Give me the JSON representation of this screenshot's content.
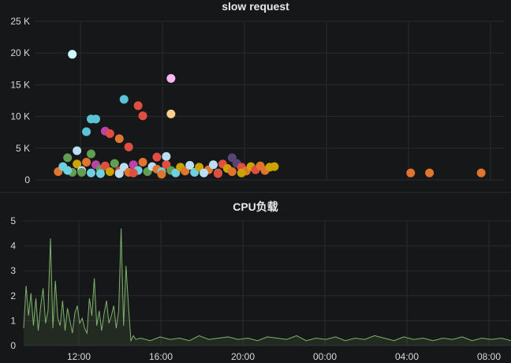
{
  "panels": [
    {
      "title": "slow request"
    },
    {
      "title": "CPU负载"
    }
  ],
  "chart_data": [
    {
      "type": "scatter",
      "title": "slow request",
      "y_ticks": [
        "0",
        "5 K",
        "10 K",
        "15 K",
        "20 K",
        "25 K"
      ],
      "ylim": [
        0,
        25000
      ],
      "grid": true,
      "points": [
        {
          "x": 0.08,
          "y": 19800,
          "color": "#cffaff"
        },
        {
          "x": 0.29,
          "y": 16000,
          "color": "#ffb7f4"
        },
        {
          "x": 0.19,
          "y": 12700,
          "color": "#5bc3d6"
        },
        {
          "x": 0.22,
          "y": 11700,
          "color": "#e24d42"
        },
        {
          "x": 0.23,
          "y": 10100,
          "color": "#e24d42"
        },
        {
          "x": 0.29,
          "y": 10400,
          "color": "#f9ce8f"
        },
        {
          "x": 0.12,
          "y": 9600,
          "color": "#5bc3d6"
        },
        {
          "x": 0.13,
          "y": 9600,
          "color": "#5bc3d6"
        },
        {
          "x": 0.11,
          "y": 7600,
          "color": "#5bc3d6"
        },
        {
          "x": 0.15,
          "y": 7700,
          "color": "#ba43a9"
        },
        {
          "x": 0.16,
          "y": 7300,
          "color": "#e24d42"
        },
        {
          "x": 0.18,
          "y": 6500,
          "color": "#e0752d"
        },
        {
          "x": 0.2,
          "y": 5200,
          "color": "#e24d42"
        },
        {
          "x": 0.09,
          "y": 4600,
          "color": "#badff4"
        },
        {
          "x": 0.07,
          "y": 3500,
          "color": "#629e51"
        },
        {
          "x": 0.12,
          "y": 4100,
          "color": "#629e51"
        },
        {
          "x": 0.26,
          "y": 3600,
          "color": "#e24d42"
        },
        {
          "x": 0.28,
          "y": 3700,
          "color": "#badff4"
        },
        {
          "x": 0.42,
          "y": 3500,
          "color": "#584477"
        },
        {
          "x": 0.05,
          "y": 1300,
          "color": "#e0752d"
        },
        {
          "x": 0.06,
          "y": 2100,
          "color": "#6ed0e0"
        },
        {
          "x": 0.08,
          "y": 1200,
          "color": "#629e51"
        },
        {
          "x": 0.09,
          "y": 2500,
          "color": "#cca300"
        },
        {
          "x": 0.1,
          "y": 1500,
          "color": "#badff4"
        },
        {
          "x": 0.11,
          "y": 2800,
          "color": "#e0752d"
        },
        {
          "x": 0.12,
          "y": 1100,
          "color": "#6ed0e0"
        },
        {
          "x": 0.13,
          "y": 2400,
          "color": "#ba43a9"
        },
        {
          "x": 0.14,
          "y": 1700,
          "color": "#629e51"
        },
        {
          "x": 0.15,
          "y": 2200,
          "color": "#e24d42"
        },
        {
          "x": 0.16,
          "y": 1300,
          "color": "#cca300"
        },
        {
          "x": 0.17,
          "y": 2600,
          "color": "#629e51"
        },
        {
          "x": 0.18,
          "y": 1400,
          "color": "#e24d42"
        },
        {
          "x": 0.19,
          "y": 2000,
          "color": "#badff4"
        },
        {
          "x": 0.2,
          "y": 1200,
          "color": "#e0752d"
        },
        {
          "x": 0.21,
          "y": 2400,
          "color": "#ba43a9"
        },
        {
          "x": 0.22,
          "y": 1500,
          "color": "#6ed0e0"
        },
        {
          "x": 0.23,
          "y": 2800,
          "color": "#e0752d"
        },
        {
          "x": 0.24,
          "y": 1300,
          "color": "#629e51"
        },
        {
          "x": 0.25,
          "y": 2100,
          "color": "#badff4"
        },
        {
          "x": 0.26,
          "y": 1700,
          "color": "#e0752d"
        },
        {
          "x": 0.27,
          "y": 1300,
          "color": "#6ed0e0"
        },
        {
          "x": 0.28,
          "y": 2400,
          "color": "#e24d42"
        },
        {
          "x": 0.29,
          "y": 1500,
          "color": "#629e51"
        },
        {
          "x": 0.3,
          "y": 1100,
          "color": "#6ed0e0"
        },
        {
          "x": 0.31,
          "y": 2000,
          "color": "#cca300"
        },
        {
          "x": 0.32,
          "y": 1400,
          "color": "#e0752d"
        },
        {
          "x": 0.33,
          "y": 2300,
          "color": "#badff4"
        },
        {
          "x": 0.34,
          "y": 1200,
          "color": "#6ed0e0"
        },
        {
          "x": 0.35,
          "y": 2000,
          "color": "#cca300"
        },
        {
          "x": 0.37,
          "y": 1600,
          "color": "#e0752d"
        },
        {
          "x": 0.38,
          "y": 2400,
          "color": "#badff4"
        },
        {
          "x": 0.39,
          "y": 1100,
          "color": "#629e51"
        },
        {
          "x": 0.4,
          "y": 2500,
          "color": "#e24d42"
        },
        {
          "x": 0.41,
          "y": 1800,
          "color": "#cca300"
        },
        {
          "x": 0.42,
          "y": 1300,
          "color": "#e0752d"
        },
        {
          "x": 0.43,
          "y": 2600,
          "color": "#584477"
        },
        {
          "x": 0.44,
          "y": 2000,
          "color": "#e24d42"
        },
        {
          "x": 0.45,
          "y": 1400,
          "color": "#e0752d"
        },
        {
          "x": 0.46,
          "y": 2100,
          "color": "#cca300"
        },
        {
          "x": 0.47,
          "y": 1600,
          "color": "#e24d42"
        },
        {
          "x": 0.48,
          "y": 2200,
          "color": "#e0752d"
        },
        {
          "x": 0.49,
          "y": 1500,
          "color": "#e0752d"
        },
        {
          "x": 0.5,
          "y": 2000,
          "color": "#cca300"
        },
        {
          "x": 0.51,
          "y": 2100,
          "color": "#cca300"
        },
        {
          "x": 0.07,
          "y": 1500,
          "color": "#6ed0e0"
        },
        {
          "x": 0.1,
          "y": 1200,
          "color": "#629e51"
        },
        {
          "x": 0.14,
          "y": 1000,
          "color": "#6ed0e0"
        },
        {
          "x": 0.18,
          "y": 1000,
          "color": "#badff4"
        },
        {
          "x": 0.21,
          "y": 1100,
          "color": "#e24d42"
        },
        {
          "x": 0.27,
          "y": 900,
          "color": "#e0752d"
        },
        {
          "x": 0.36,
          "y": 1100,
          "color": "#badff4"
        },
        {
          "x": 0.39,
          "y": 1000,
          "color": "#e24d42"
        },
        {
          "x": 0.44,
          "y": 1100,
          "color": "#cca300"
        },
        {
          "x": 0.8,
          "y": 1100,
          "color": "#e0752d"
        },
        {
          "x": 0.84,
          "y": 1100,
          "color": "#e0752d"
        },
        {
          "x": 0.95,
          "y": 1100,
          "color": "#e0752d"
        }
      ]
    },
    {
      "type": "line",
      "title": "CPU负载",
      "y_ticks": [
        "0",
        "1",
        "2",
        "3",
        "4",
        "5"
      ],
      "ylim": [
        0,
        5
      ],
      "x_ticks": [
        "12:00",
        "16:00",
        "20:00",
        "00:00",
        "04:00",
        "08:00"
      ],
      "grid": true,
      "series": [
        {
          "color": "#7eb26d",
          "x": [
            0,
            0.005,
            0.01,
            0.015,
            0.02,
            0.025,
            0.03,
            0.035,
            0.04,
            0.045,
            0.05,
            0.055,
            0.06,
            0.065,
            0.07,
            0.075,
            0.08,
            0.085,
            0.09,
            0.095,
            0.1,
            0.105,
            0.11,
            0.115,
            0.12,
            0.125,
            0.13,
            0.135,
            0.14,
            0.145,
            0.15,
            0.155,
            0.16,
            0.165,
            0.17,
            0.175,
            0.18,
            0.185,
            0.19,
            0.195,
            0.2,
            0.205,
            0.21,
            0.215,
            0.22,
            0.225,
            0.23,
            0.24,
            0.26,
            0.28,
            0.3,
            0.32,
            0.34,
            0.36,
            0.38,
            0.4,
            0.42,
            0.44,
            0.46,
            0.48,
            0.5,
            0.52,
            0.54,
            0.56,
            0.58,
            0.6,
            0.62,
            0.64,
            0.66,
            0.68,
            0.7,
            0.72,
            0.74,
            0.76,
            0.78,
            0.8,
            0.82,
            0.84,
            0.86,
            0.88,
            0.9,
            0.92,
            0.94,
            0.96,
            0.98,
            1.0
          ],
          "y": [
            0.7,
            2.4,
            1.2,
            2.1,
            0.8,
            1.9,
            0.6,
            1.6,
            2.3,
            0.9,
            1.4,
            4.3,
            0.7,
            2.6,
            1.1,
            0.8,
            1.8,
            0.6,
            1.5,
            1.0,
            0.5,
            1.3,
            1.6,
            0.9,
            1.1,
            0.7,
            0.5,
            1.9,
            1.2,
            2.7,
            0.8,
            1.4,
            0.6,
            1.3,
            1.8,
            0.9,
            1.2,
            1.6,
            0.7,
            1.4,
            4.7,
            0.8,
            3.2,
            1.6,
            0.2,
            0.4,
            0.25,
            0.3,
            0.2,
            0.35,
            0.25,
            0.3,
            0.2,
            0.4,
            0.25,
            0.3,
            0.35,
            0.25,
            0.3,
            0.2,
            0.35,
            0.3,
            0.25,
            0.4,
            0.2,
            0.3,
            0.25,
            0.35,
            0.2,
            0.3,
            0.25,
            0.4,
            0.3,
            0.2,
            0.35,
            0.25,
            0.3,
            0.2,
            0.3,
            0.25,
            0.35,
            0.2,
            0.3,
            0.25,
            0.3,
            0.2
          ]
        }
      ]
    }
  ]
}
